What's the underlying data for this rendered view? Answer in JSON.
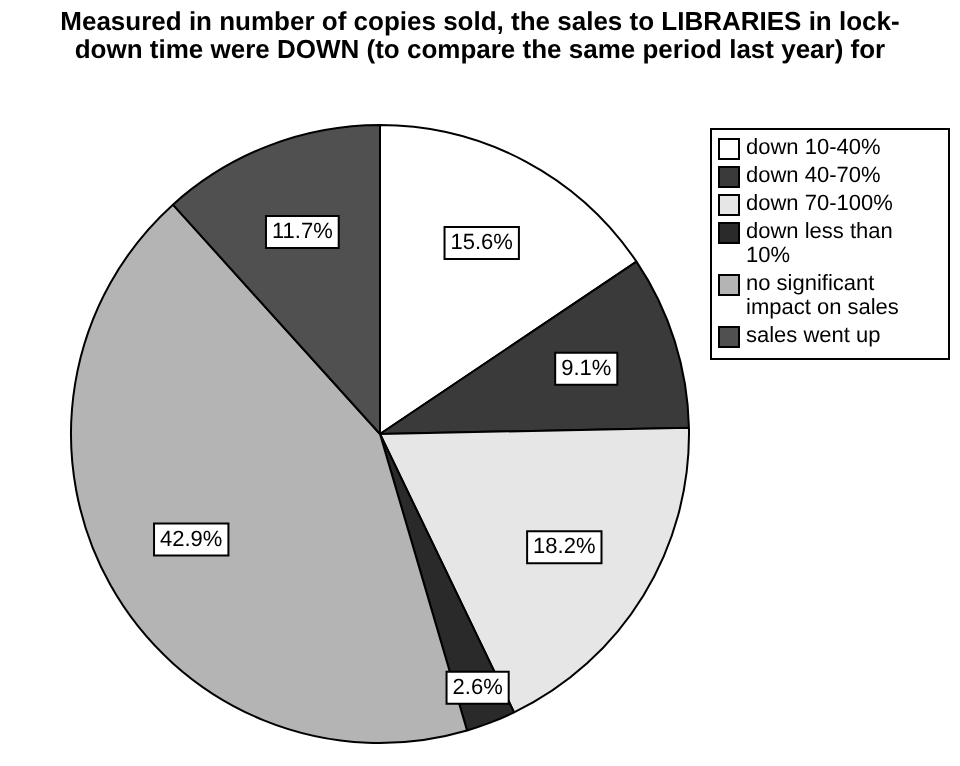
{
  "chart_data": {
    "type": "pie",
    "title": "Measured in number of copies sold, the sales to LIBRARIES in lock-down time were DOWN (to compare the same period last year) for",
    "categories": [
      "down 10-40%",
      "down 40-70%",
      "down 70-100%",
      "down less than 10%",
      "no significant impact on sales",
      "sales went up"
    ],
    "values": [
      15.6,
      9.1,
      18.2,
      2.6,
      42.9,
      11.7
    ],
    "value_labels": [
      "15.6%",
      "9.1%",
      "18.2%",
      "2.6%",
      "42.9%",
      "11.7%"
    ],
    "colors": [
      "#ffffff",
      "#3a3a3a",
      "#e6e6e6",
      "#2a2a2a",
      "#b4b4b4",
      "#505050"
    ],
    "legend": "right"
  }
}
